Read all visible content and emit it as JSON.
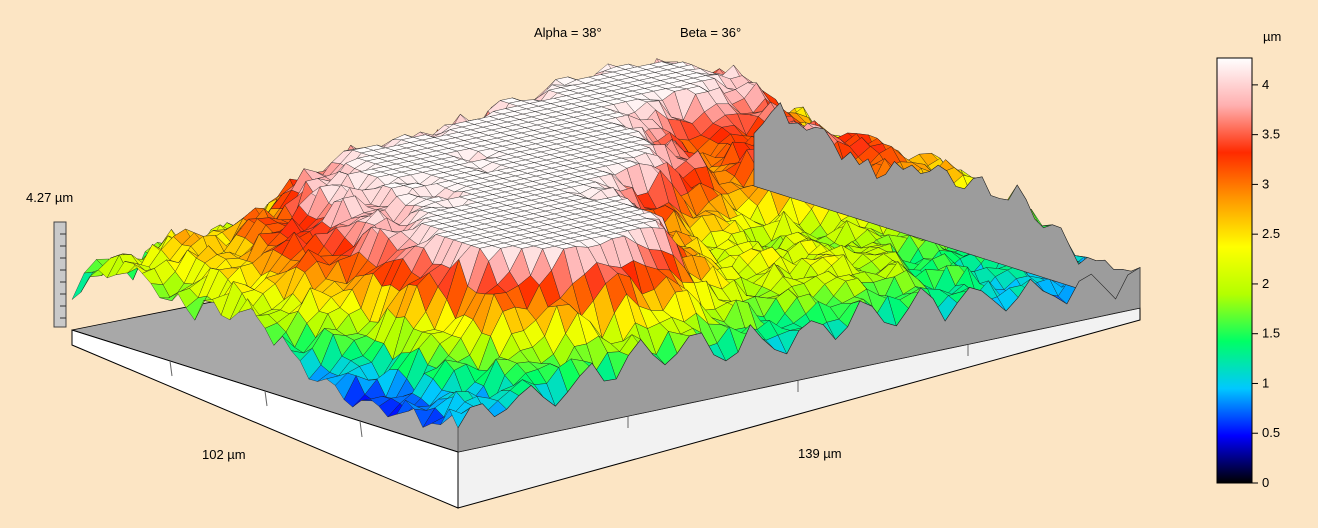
{
  "chart_data": {
    "type": "surface3d",
    "header": {
      "alpha": "Alpha = 38°",
      "beta": "Beta = 36°"
    },
    "z_scale_label": "4.27 µm",
    "x_extent_label": "139 µm",
    "y_extent_label": "102 µm",
    "colorbar": {
      "unit": "µm",
      "range": [
        0,
        4.27
      ],
      "ticks": [
        {
          "value": 0,
          "label": "0"
        },
        {
          "value": 0.5,
          "label": "0.5"
        },
        {
          "value": 1,
          "label": "1"
        },
        {
          "value": 1.5,
          "label": "1.5"
        },
        {
          "value": 2,
          "label": "2"
        },
        {
          "value": 2.5,
          "label": "2.5"
        },
        {
          "value": 3,
          "label": "3"
        },
        {
          "value": 3.5,
          "label": "3.5"
        },
        {
          "value": 4,
          "label": "4"
        }
      ],
      "colors": [
        "#000000",
        "#0000ff",
        "#00c8ff",
        "#00ff66",
        "#b4ff00",
        "#ffff00",
        "#ff9900",
        "#ff2a00",
        "#ffb0b0",
        "#ffffff"
      ]
    },
    "surface": {
      "x_range": [
        0,
        139
      ],
      "y_range": [
        0,
        102
      ],
      "z_range": [
        0,
        4.27
      ],
      "peaks": [
        {
          "x": 118,
          "y": 92,
          "z": 2.4,
          "s": 16
        },
        {
          "x": 96,
          "y": 86,
          "z": 2.5,
          "s": 18
        },
        {
          "x": 70,
          "y": 80,
          "z": 2.0,
          "s": 18
        },
        {
          "x": 45,
          "y": 80,
          "z": 2.3,
          "s": 16
        },
        {
          "x": 22,
          "y": 58,
          "z": 2.2,
          "s": 18
        },
        {
          "x": 30,
          "y": 28,
          "z": 3.6,
          "s": 13
        },
        {
          "x": 48,
          "y": 24,
          "z": 3.3,
          "s": 12
        },
        {
          "x": 58,
          "y": 50,
          "z": 2.3,
          "s": 13
        },
        {
          "x": 78,
          "y": 58,
          "z": 1.9,
          "s": 12
        },
        {
          "x": 112,
          "y": 58,
          "z": 2.0,
          "s": 13
        },
        {
          "x": 128,
          "y": 40,
          "z": 1.4,
          "s": 14
        },
        {
          "x": 88,
          "y": 18,
          "z": 1.3,
          "s": 14
        },
        {
          "x": 8,
          "y": 90,
          "z": 1.0,
          "s": 10
        }
      ],
      "valleys": [
        {
          "x": 104,
          "y": 70,
          "z": 1.5,
          "s": 10
        },
        {
          "x": 5,
          "y": 30,
          "z": 1.0,
          "s": 12
        },
        {
          "x": 62,
          "y": 68,
          "z": 0.8,
          "s": 8
        }
      ]
    }
  }
}
